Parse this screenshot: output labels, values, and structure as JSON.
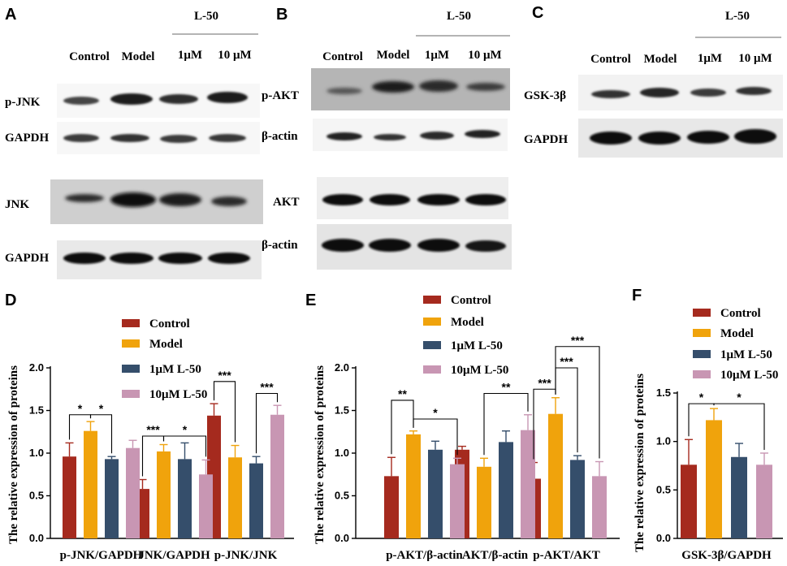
{
  "colors": {
    "Control": "#a52a1e",
    "Model": "#f0a30c",
    "1uM": "#354e6b",
    "10uM": "#c896b3"
  },
  "blots": {
    "A": {
      "label": "A",
      "group": "L-50",
      "lanes": [
        "Control",
        "Model",
        "1μM",
        "10 μM"
      ],
      "rows": [
        "p-JNK",
        "GAPDH",
        "JNK",
        "GAPDH"
      ]
    },
    "B": {
      "label": "B",
      "group": "L-50",
      "lanes": [
        "Control",
        "Model",
        "1μM",
        "10 μM"
      ],
      "rows": [
        "p-AKT",
        "β-actin",
        "AKT",
        "β-actin"
      ]
    },
    "C": {
      "label": "C",
      "group": "L-50",
      "lanes": [
        "Control",
        "Model",
        "1μM",
        "10 μM"
      ],
      "rows": [
        "GSK-3β",
        "GAPDH"
      ]
    }
  },
  "chart_data": [
    {
      "type": "bar",
      "panel": "D",
      "ylabel": "The relative expression of proteins",
      "ylim": [
        0,
        2.0
      ],
      "yticks": [
        "0.0",
        "0.5",
        "1.0",
        "1.5",
        "2.0"
      ],
      "categories": [
        "p-JNK/GAPDH",
        "JNK/GAPDH",
        "p-JNK/JNK"
      ],
      "legend": [
        "Control",
        "Model",
        "1μM L-50",
        "10μM L-50"
      ],
      "series": [
        {
          "name": "Control",
          "values": [
            0.96,
            0.58,
            1.44
          ],
          "errors": [
            0.16,
            0.11,
            0.14
          ]
        },
        {
          "name": "Model",
          "values": [
            1.26,
            1.02,
            0.95
          ],
          "errors": [
            0.11,
            0.08,
            0.14
          ]
        },
        {
          "name": "1μM L-50",
          "values": [
            0.93,
            0.93,
            0.88
          ],
          "errors": [
            0.03,
            0.19,
            0.08
          ]
        },
        {
          "name": "10μM L-50",
          "values": [
            1.06,
            0.75,
            1.45
          ],
          "errors": [
            0.09,
            0.17,
            0.11
          ]
        }
      ],
      "annotations": [
        {
          "from": 0,
          "to": 1,
          "cat": 0,
          "text": "*",
          "y": 1.45
        },
        {
          "from": 1,
          "to": 2,
          "cat": 0,
          "text": "*",
          "y": 1.45
        },
        {
          "from": 0,
          "to": 1,
          "cat": 1,
          "text": "***",
          "y": 1.2
        },
        {
          "from": 1,
          "to": 3,
          "cat": 1,
          "text": "*",
          "y": 1.2
        },
        {
          "from": 0,
          "to": 1,
          "cat": 2,
          "text": "***",
          "y": 1.84
        },
        {
          "from": 2,
          "to": 3,
          "cat": 2,
          "text": "***",
          "y": 1.7
        }
      ]
    },
    {
      "type": "bar",
      "panel": "E",
      "ylabel": "The relative expression of proteins",
      "ylim": [
        0,
        2.0
      ],
      "yticks": [
        "0.0",
        "0.5",
        "1.0",
        "1.5",
        "2.0"
      ],
      "categories": [
        "p-AKT/β-actin",
        "AKT/β-actin",
        "p-AKT/AKT"
      ],
      "legend": [
        "Control",
        "Model",
        "1μM L-50",
        "10μM L-50"
      ],
      "series": [
        {
          "name": "Control",
          "values": [
            0.73,
            1.04,
            0.7
          ],
          "errors": [
            0.22,
            0.04,
            0.19
          ]
        },
        {
          "name": "Model",
          "values": [
            1.22,
            0.84,
            1.46
          ],
          "errors": [
            0.04,
            0.1,
            0.19
          ]
        },
        {
          "name": "1μM L-50",
          "values": [
            1.04,
            1.13,
            0.92
          ],
          "errors": [
            0.1,
            0.13,
            0.05
          ]
        },
        {
          "name": "10μM L-50",
          "values": [
            0.87,
            1.27,
            0.73
          ],
          "errors": [
            0.07,
            0.18,
            0.17
          ]
        }
      ],
      "annotations": [
        {
          "from": 0,
          "to": 1,
          "cat": 0,
          "text": "**",
          "y": 1.62
        },
        {
          "from": 1,
          "to": 3,
          "cat": 0,
          "text": "*",
          "y": 1.4
        },
        {
          "from": 1,
          "to": 3,
          "cat": 1,
          "text": "**",
          "y": 1.7
        },
        {
          "from": 0,
          "to": 1,
          "cat": 2,
          "text": "***",
          "y": 1.75
        },
        {
          "from": 1,
          "to": 2,
          "cat": 2,
          "text": "***",
          "y": 2.0
        },
        {
          "from": 1,
          "to": 3,
          "cat": 2,
          "text": "***",
          "y": 2.25
        }
      ]
    },
    {
      "type": "bar",
      "panel": "F",
      "ylabel": "The relative expression of proteins",
      "ylim": [
        0,
        1.5
      ],
      "yticks": [
        "0.0",
        "0.5",
        "1.0",
        "1.5"
      ],
      "categories": [
        "GSK-3β/GAPDH"
      ],
      "legend": [
        "Control",
        "Model",
        "1μM L-50",
        "10μM L-50"
      ],
      "series": [
        {
          "name": "Control",
          "values": [
            0.76
          ],
          "errors": [
            0.26
          ]
        },
        {
          "name": "Model",
          "values": [
            1.22
          ],
          "errors": [
            0.12
          ]
        },
        {
          "name": "1μM L-50",
          "values": [
            0.84
          ],
          "errors": [
            0.14
          ]
        },
        {
          "name": "10μM L-50",
          "values": [
            0.76
          ],
          "errors": [
            0.12
          ]
        }
      ],
      "annotations": [
        {
          "from": 0,
          "to": 1,
          "cat": 0,
          "text": "*",
          "y": 1.39
        },
        {
          "from": 1,
          "to": 3,
          "cat": 0,
          "text": "*",
          "y": 1.39
        }
      ]
    }
  ]
}
